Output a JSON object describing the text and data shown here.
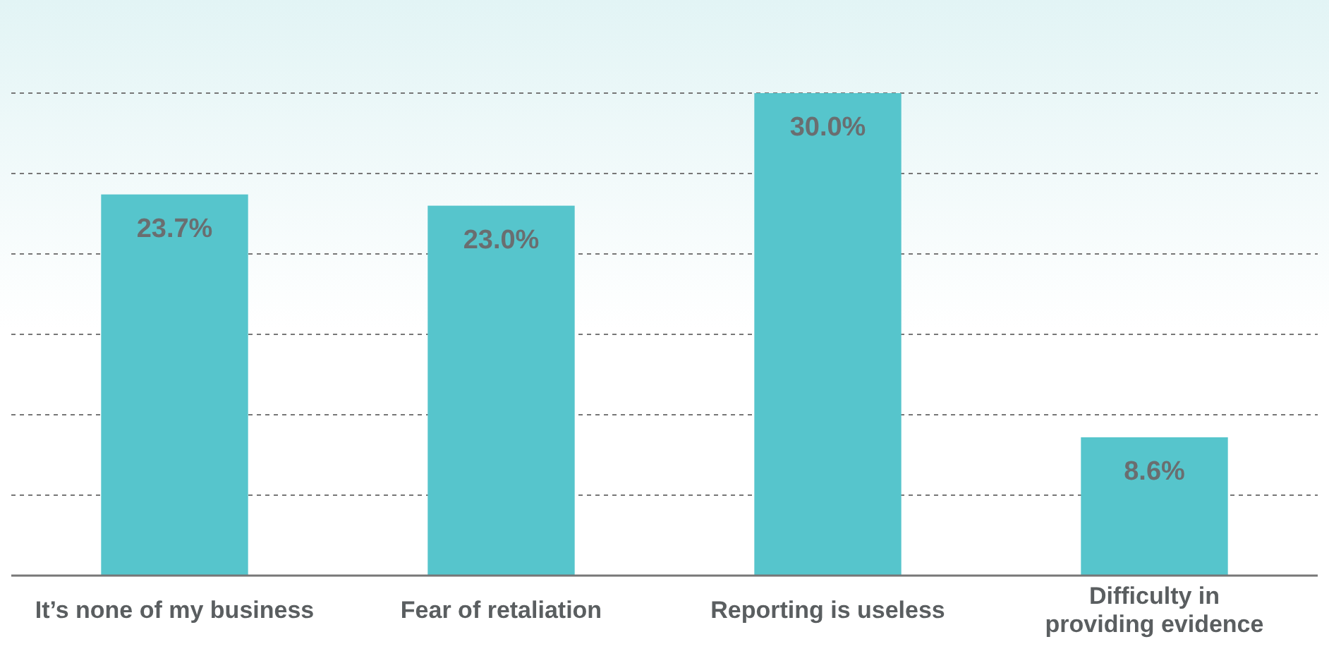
{
  "chart_data": {
    "type": "bar",
    "categories": [
      "It’s none of my business",
      "Fear of retaliation",
      "Reporting is useless",
      "Difficulty in providing evidence"
    ],
    "values": [
      23.7,
      23.0,
      30.0,
      8.6
    ],
    "value_labels": [
      "23.7%",
      "23.0%",
      "30.0%",
      "8.6%"
    ],
    "color": "#56c5cc",
    "ylim": [
      0,
      30
    ],
    "yticks": [
      {
        "value": 0,
        "label": null
      },
      {
        "value": 5,
        "label": null
      },
      {
        "value": 10,
        "label": null
      },
      {
        "value": 15,
        "label": null
      },
      {
        "value": 20,
        "label": null
      },
      {
        "value": 25,
        "label": null
      },
      {
        "value": 30,
        "label": null
      }
    ],
    "grid": "y",
    "tick_labels": "x"
  }
}
